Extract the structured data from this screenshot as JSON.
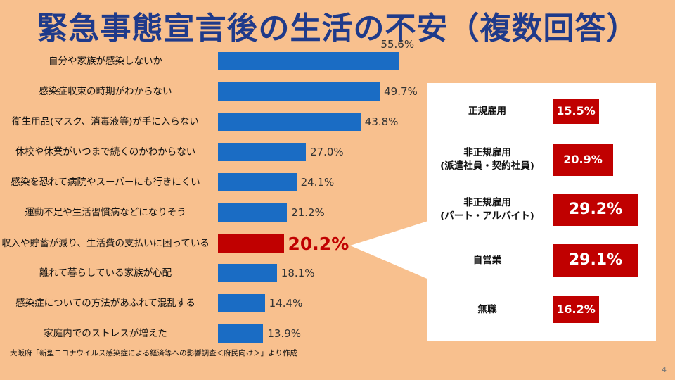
{
  "title": "緊急事態宣言後の生活の不安（複数回答）",
  "chart_data": {
    "type": "bar",
    "orientation": "horizontal",
    "unit": "%",
    "highlight_index": 6,
    "categories": [
      "自分や家族が感染しないか",
      "感染症収束の時期がわからない",
      "衛生用品(マスク、消毒液等)が手に入らない",
      "休校や休業がいつまで続くのかわからない",
      "感染を恐れて病院やスーパーにも行きにくい",
      "運動不足や生活習慣病などになりそう",
      "収入や貯蓄が減り、生活費の支払いに困っている",
      "離れて暮らしている家族が心配",
      "感染症についての方法があふれて混乱する",
      "家庭内でのストレスが増えた"
    ],
    "values": [
      55.6,
      49.7,
      43.8,
      27.0,
      24.1,
      21.2,
      20.2,
      18.1,
      14.4,
      13.9
    ],
    "value_labels": [
      "55.6%",
      "49.7%",
      "43.8%",
      "27.0%",
      "24.1%",
      "21.2%",
      "20.2%",
      "18.1%",
      "14.4%",
      "13.9%"
    ],
    "colors": {
      "bar": "#1a6cc4",
      "highlight": "#c00000"
    }
  },
  "breakdown": {
    "items": [
      {
        "label_lines": [
          "正規雇用"
        ],
        "value": "15.5%"
      },
      {
        "label_lines": [
          "非正規雇用",
          "(派遣社員・契約社員)"
        ],
        "value": "20.9%"
      },
      {
        "label_lines": [
          "非正規雇用",
          "(パート・アルバイト)"
        ],
        "value": "29.2%"
      },
      {
        "label_lines": [
          "自営業"
        ],
        "value": "29.1%"
      },
      {
        "label_lines": [
          "無職"
        ],
        "value": "16.2%"
      }
    ]
  },
  "source": "大阪府「新型コロナウイルス感染症による経済等への影響調査＜府民向け＞」より作成",
  "page_number": "4",
  "colors": {
    "background": "#f8c08e",
    "title": "#1f3a8a",
    "accent": "#c00000"
  }
}
